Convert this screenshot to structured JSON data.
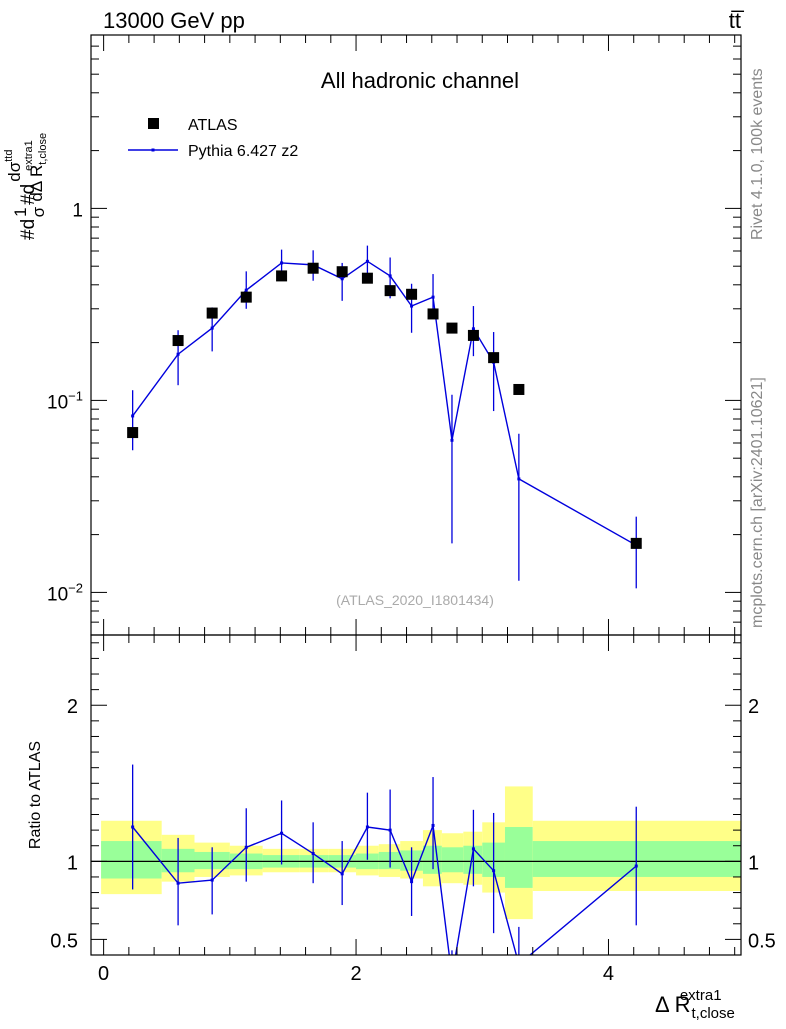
{
  "header": {
    "energy_label": "13000 GeV pp",
    "process_label": "tt̅",
    "rivet_label": "Rivet 4.1.0,  100k events",
    "mcplots_label": "mcplots.cern.ch [arXiv:2401.10621]"
  },
  "chart_data": [
    {
      "type": "scatter",
      "title": "All hadronic channel",
      "analysis_id": "(ATLAS_2020_I1801434)",
      "ylabel": "#d1/σ#d dσ^{ttd}/dΔ R_{t,close}^{extra1}",
      "ylabel_parts": {
        "lead": "#d",
        "frac1_num": "1",
        "frac1_den": "σ",
        "mid": "#d",
        "frac2_num": "dσ",
        "frac2_num_sup": "ttd",
        "frac2_den": "dΔ R",
        "frac2_den_sub": "t,close",
        "frac2_den_sup": "extra1"
      },
      "yscale": "log",
      "ylim": [
        0.006,
        8
      ],
      "xlim": [
        -0.1,
        5.05
      ],
      "y_tick_labels": [
        {
          "value": 1,
          "base": "1",
          "exp": ""
        },
        {
          "value": 0.1,
          "base": "10",
          "exp": "−1"
        },
        {
          "value": 0.01,
          "base": "10",
          "exp": "−2"
        }
      ],
      "legend": {
        "position": "top-left",
        "entries": [
          "ATLAS",
          "Pythia 6.427 z2"
        ]
      },
      "series": [
        {
          "name": "ATLAS",
          "color": "#000000",
          "x": [
            0.23,
            0.59,
            0.86,
            1.13,
            1.41,
            1.66,
            1.89,
            2.09,
            2.27,
            2.44,
            2.61,
            2.76,
            2.93,
            3.09,
            3.29,
            4.22
          ],
          "y": [
            0.068,
            0.205,
            0.285,
            0.345,
            0.445,
            0.488,
            0.468,
            0.433,
            0.373,
            0.357,
            0.282,
            0.238,
            0.218,
            0.167,
            0.114,
            0.018
          ]
        },
        {
          "name": "Pythia 6.427 z2",
          "color": "#0000dd",
          "x": [
            0.23,
            0.59,
            0.86,
            1.13,
            1.41,
            1.66,
            1.89,
            2.09,
            2.27,
            2.44,
            2.61,
            2.76,
            2.93,
            3.09,
            3.29,
            4.22
          ],
          "y": [
            0.083,
            0.174,
            0.238,
            0.375,
            0.52,
            0.508,
            0.43,
            0.53,
            0.445,
            0.31,
            0.345,
            0.062,
            0.236,
            0.158,
            0.039,
            0.0176
          ],
          "err_low": [
            0.055,
            0.12,
            0.18,
            0.3,
            0.44,
            0.42,
            0.33,
            0.44,
            0.34,
            0.225,
            0.265,
            0.018,
            0.17,
            0.088,
            0.0115,
            0.0105
          ],
          "err_high": [
            0.113,
            0.232,
            0.305,
            0.47,
            0.61,
            0.605,
            0.52,
            0.64,
            0.555,
            0.405,
            0.455,
            0.107,
            0.31,
            0.227,
            0.067,
            0.0248
          ]
        }
      ]
    },
    {
      "type": "line",
      "ylabel": "Ratio to ATLAS",
      "xlabel": "Δ R_{t,close}^{extra1}",
      "xlabel_parts": {
        "main": "Δ R",
        "sub": "t,close",
        "sup": "extra1"
      },
      "ylim": [
        0.4,
        2.45
      ],
      "xlim": [
        -0.1,
        5.05
      ],
      "x_ticks": [
        0,
        2,
        4
      ],
      "y_ticks": [
        0.5,
        1,
        2
      ],
      "bins": [
        -0.02,
        0.46,
        0.72,
        1.0,
        1.26,
        1.55,
        1.78,
        2.0,
        2.18,
        2.35,
        2.53,
        2.68,
        2.85,
        3.0,
        3.18,
        3.4,
        5.05
      ],
      "band_outer": {
        "color": "#ffff88",
        "low": [
          0.79,
          0.87,
          0.9,
          0.91,
          0.93,
          0.93,
          0.93,
          0.91,
          0.9,
          0.89,
          0.84,
          0.86,
          0.85,
          0.8,
          0.63,
          0.81
        ],
        "high": [
          1.26,
          1.17,
          1.12,
          1.1,
          1.08,
          1.08,
          1.08,
          1.1,
          1.11,
          1.13,
          1.2,
          1.18,
          1.19,
          1.25,
          1.48,
          1.26
        ]
      },
      "band_inner": {
        "color": "#99ff99",
        "low": [
          0.89,
          0.93,
          0.95,
          0.95,
          0.96,
          0.96,
          0.96,
          0.95,
          0.95,
          0.94,
          0.92,
          0.93,
          0.92,
          0.9,
          0.83,
          0.9
        ],
        "high": [
          1.13,
          1.08,
          1.06,
          1.05,
          1.04,
          1.04,
          1.04,
          1.05,
          1.06,
          1.07,
          1.1,
          1.09,
          1.1,
          1.12,
          1.22,
          1.13
        ]
      },
      "series": [
        {
          "name": "Pythia 6.427 z2 / ATLAS",
          "color": "#0000dd",
          "x": [
            0.23,
            0.59,
            0.86,
            1.13,
            1.41,
            1.66,
            1.89,
            2.09,
            2.27,
            2.44,
            2.61,
            2.76,
            2.93,
            3.09,
            3.29,
            4.22
          ],
          "y": [
            1.22,
            0.86,
            0.88,
            1.09,
            1.18,
            1.05,
            0.92,
            1.22,
            1.2,
            0.87,
            1.23,
            0.26,
            1.08,
            0.94,
            0.34,
            0.97
          ],
          "err_low": [
            0.82,
            0.59,
            0.66,
            0.87,
            0.98,
            0.86,
            0.72,
            1.01,
            0.96,
            0.65,
            0.95,
            0.09,
            0.84,
            0.54,
            0.11,
            0.59
          ],
          "err_high": [
            1.62,
            1.15,
            1.09,
            1.34,
            1.39,
            1.25,
            1.13,
            1.44,
            1.46,
            1.09,
            1.54,
            0.43,
            1.33,
            1.31,
            0.58,
            1.35
          ]
        }
      ]
    }
  ]
}
